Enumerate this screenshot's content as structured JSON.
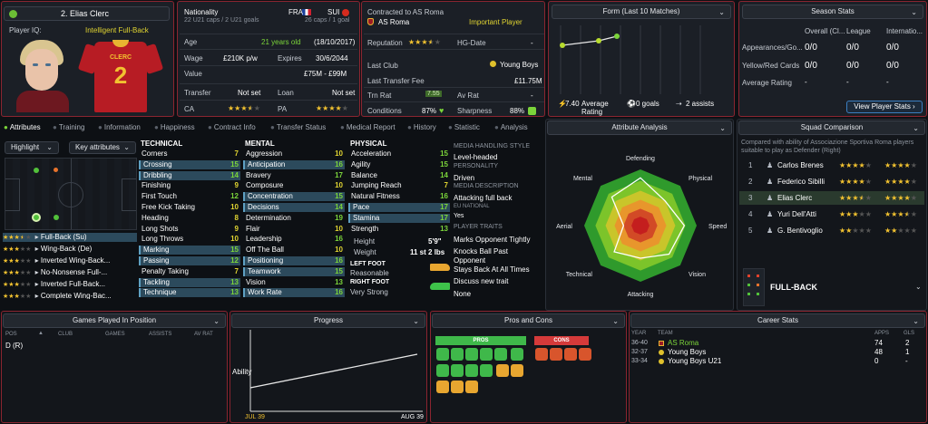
{
  "player": {
    "name": "2. Elias Clerc",
    "player_iq_label": "Player IQ:",
    "player_iq_value": "Intelligent Full-Back",
    "shirt_name": "CLERC",
    "shirt_number": "2"
  },
  "info": {
    "nationality_label": "Nationality",
    "nat1": "FRA",
    "nat2": "SUI",
    "caps1": "22 U21 caps / 2 U21 goals",
    "caps2": "26 caps / 1 goal",
    "age_label": "Age",
    "age_value": "21 years old",
    "dob": "(18/10/2017)",
    "wage_label": "Wage",
    "wage_value": "£210K p/w",
    "expires_label": "Expires",
    "expires_value": "30/6/2044",
    "value_label": "Value",
    "value_value": "£75M - £99M",
    "transfer_label": "Transfer",
    "transfer_value": "Not set",
    "loan_label": "Loan",
    "loan_value": "Not set",
    "ca_label": "CA",
    "pa_label": "PA",
    "ca_stars": 3.5,
    "pa_stars": 4
  },
  "contract": {
    "contracted_label": "Contracted to AS Roma",
    "club": "AS Roma",
    "status": "Important Player",
    "reputation_label": "Reputation",
    "reputation_stars": 3.5,
    "hg_label": "HG-Date",
    "hg_value": "-",
    "last_club_label": "Last Club",
    "last_club_value": "Young Boys",
    "last_fee_label": "Last Transfer Fee",
    "last_fee_value": "£11.75M",
    "trn_rat_label": "Trn Rat",
    "trn_rat_value": "7.55",
    "av_rat_label": "Av Rat",
    "av_rat_value": "-",
    "conditions_label": "Conditions",
    "conditions_value": "87%",
    "sharpness_label": "Sharpness",
    "sharpness_value": "88%"
  },
  "form": {
    "title": "Form (Last 10 Matches)",
    "avg_value": "7.40",
    "avg_label": "Average Rating",
    "goals": "0 goals",
    "assists": "2 assists"
  },
  "season": {
    "title": "Season Stats",
    "cols": [
      "Overall (Cl...",
      "League",
      "Internatio..."
    ],
    "rows": [
      {
        "label": "Appearances/Go...",
        "vals": [
          "0/0",
          "0/0",
          "0/0"
        ]
      },
      {
        "label": "Yellow/Red Cards",
        "vals": [
          "0/0",
          "0/0",
          "0/0"
        ]
      },
      {
        "label": "Average Rating",
        "vals": [
          "-",
          "-",
          "-"
        ]
      }
    ],
    "button": "View Player Stats"
  },
  "tabs": [
    "Attributes",
    "Training",
    "Information",
    "Happiness",
    "Contract Info",
    "Transfer Status",
    "Medical Report",
    "History",
    "Statistic",
    "Analysis"
  ],
  "left": {
    "highlight": "Highlight",
    "key_attrs": "Key attributes",
    "roles": [
      {
        "label": "Full-Back (Su)",
        "stars": 3.5
      },
      {
        "label": "Wing-Back (De)",
        "stars": 3
      },
      {
        "label": "Inverted Wing-Back...",
        "stars": 3
      },
      {
        "label": "No-Nonsense Full-...",
        "stars": 3
      },
      {
        "label": "Inverted Full-Back...",
        "stars": 3
      },
      {
        "label": "Complete Wing-Bac...",
        "stars": 3
      }
    ]
  },
  "technical": {
    "title": "TECHNICAL",
    "items": [
      {
        "n": "Corners",
        "v": "7",
        "h": false,
        "c": "yellow"
      },
      {
        "n": "Crossing",
        "v": "15",
        "h": true,
        "c": "green"
      },
      {
        "n": "Dribbling",
        "v": "14",
        "h": true,
        "c": "green"
      },
      {
        "n": "Finishing",
        "v": "9",
        "h": false,
        "c": "yellow"
      },
      {
        "n": "First Touch",
        "v": "12",
        "h": false,
        "c": "green"
      },
      {
        "n": "Free Kick Taking",
        "v": "10",
        "h": false,
        "c": "yellow"
      },
      {
        "n": "Heading",
        "v": "8",
        "h": false,
        "c": "yellow"
      },
      {
        "n": "Long Shots",
        "v": "9",
        "h": false,
        "c": "yellow"
      },
      {
        "n": "Long Throws",
        "v": "10",
        "h": false,
        "c": "yellow"
      },
      {
        "n": "Marking",
        "v": "15",
        "h": true,
        "c": "green"
      },
      {
        "n": "Passing",
        "v": "12",
        "h": true,
        "c": "green"
      },
      {
        "n": "Penalty Taking",
        "v": "7",
        "h": false,
        "c": "yellow"
      },
      {
        "n": "Tackling",
        "v": "13",
        "h": true,
        "c": "green"
      },
      {
        "n": "Technique",
        "v": "13",
        "h": true,
        "c": "green"
      }
    ]
  },
  "mental": {
    "title": "MENTAL",
    "items": [
      {
        "n": "Aggression",
        "v": "10",
        "h": false,
        "c": "yellow"
      },
      {
        "n": "Anticipation",
        "v": "16",
        "h": true,
        "c": "green"
      },
      {
        "n": "Bravery",
        "v": "17",
        "h": false,
        "c": "green"
      },
      {
        "n": "Composure",
        "v": "10",
        "h": false,
        "c": "yellow"
      },
      {
        "n": "Concentration",
        "v": "15",
        "h": true,
        "c": "green"
      },
      {
        "n": "Decisions",
        "v": "14",
        "h": true,
        "c": "green"
      },
      {
        "n": "Determination",
        "v": "19",
        "h": false,
        "c": "green"
      },
      {
        "n": "Flair",
        "v": "10",
        "h": false,
        "c": "yellow"
      },
      {
        "n": "Leadership",
        "v": "16",
        "h": false,
        "c": "green"
      },
      {
        "n": "Off The Ball",
        "v": "10",
        "h": false,
        "c": "yellow"
      },
      {
        "n": "Positioning",
        "v": "16",
        "h": true,
        "c": "green"
      },
      {
        "n": "Teamwork",
        "v": "15",
        "h": true,
        "c": "green"
      },
      {
        "n": "Vision",
        "v": "13",
        "h": false,
        "c": "green"
      },
      {
        "n": "Work Rate",
        "v": "16",
        "h": true,
        "c": "green"
      }
    ]
  },
  "physical": {
    "title": "PHYSICAL",
    "items": [
      {
        "n": "Acceleration",
        "v": "15",
        "h": false,
        "c": "green"
      },
      {
        "n": "Agility",
        "v": "15",
        "h": false,
        "c": "green"
      },
      {
        "n": "Balance",
        "v": "14",
        "h": false,
        "c": "green"
      },
      {
        "n": "Jumping Reach",
        "v": "7",
        "h": false,
        "c": "yellow"
      },
      {
        "n": "Natural Fitness",
        "v": "16",
        "h": false,
        "c": "green"
      },
      {
        "n": "Pace",
        "v": "17",
        "h": true,
        "c": "green"
      },
      {
        "n": "Stamina",
        "v": "17",
        "h": true,
        "c": "green"
      },
      {
        "n": "Strength",
        "v": "13",
        "h": false,
        "c": "green"
      }
    ],
    "height_label": "Height",
    "height_value": "5'9\"",
    "weight_label": "Weight",
    "weight_value": "11 st 2 lbs",
    "left_foot_label": "LEFT FOOT",
    "left_foot_value": "Reasonable",
    "right_foot_label": "RIGHT FOOT",
    "right_foot_value": "Very Strong"
  },
  "media": {
    "style_label": "MEDIA HANDLING STYLE",
    "style_value": "Level-headed",
    "personality_label": "PERSONALITY",
    "personality_value": "Driven",
    "desc_label": "MEDIA DESCRIPTION",
    "desc_value": "Attacking full back",
    "eu_label": "EU NATIONAL",
    "eu_value": "Yes",
    "traits_label": "PLAYER TRAITS",
    "traits": [
      "Marks Opponent Tightly",
      "Knocks Ball Past Opponent",
      "Stays Back At All Times"
    ],
    "discuss": "Discuss new trait",
    "none": "None"
  },
  "analysis": {
    "title": "Attribute Analysis",
    "labels": [
      "Defending",
      "Physical",
      "Speed",
      "Vision",
      "Attacking",
      "Technical",
      "Aerial",
      "Mental"
    ],
    "values": [
      0.85,
      0.62,
      0.78,
      0.72,
      0.58,
      0.66,
      0.3,
      0.72
    ]
  },
  "squad": {
    "title": "Squad Comparison",
    "subtitle": "Compared with ability of Associazione Sportiva Roma players suitable to play as Defender (Right)",
    "rows": [
      {
        "rank": "1",
        "name": "Carlos Brenes",
        "ca": 4,
        "pa": 4
      },
      {
        "rank": "2",
        "name": "Federico Sibilli",
        "ca": 4,
        "pa": 4
      },
      {
        "rank": "3",
        "name": "Elias Clerc",
        "ca": 3.5,
        "pa": 4
      },
      {
        "rank": "4",
        "name": "Yuri Dell'Atti",
        "ca": 3,
        "pa": 3.5
      },
      {
        "rank": "5",
        "name": "G. Bentivoglio",
        "ca": 2,
        "pa": 2
      }
    ],
    "position": "FULL-BACK"
  },
  "games": {
    "title": "Games Played In Position",
    "cols": [
      "POS",
      "CLUB",
      "GAMES",
      "ASSISTS",
      "AV RAT"
    ],
    "row": "D (R)"
  },
  "progress": {
    "title": "Progress",
    "ylabel": "Ability",
    "xstart": "JUL 39",
    "xend": "AUG 39"
  },
  "pros": {
    "title": "Pros and Cons",
    "pros_label": "PROS",
    "cons_label": "CONS"
  },
  "career": {
    "title": "Career Stats",
    "cols": [
      "YEAR",
      "TEAM",
      "APPS",
      "GLS"
    ],
    "rows": [
      {
        "year": "36-40",
        "team": "AS Roma",
        "apps": "74",
        "gls": "2",
        "current": true
      },
      {
        "year": "32-37",
        "team": "Young Boys",
        "apps": "48",
        "gls": "1",
        "current": false
      },
      {
        "year": "33-34",
        "team": "Young Boys U21",
        "apps": "0",
        "gls": "-",
        "current": false
      }
    ]
  },
  "colors": {
    "accent": "#8b2530",
    "green": "#7bd43a",
    "star": "#f2c230"
  }
}
